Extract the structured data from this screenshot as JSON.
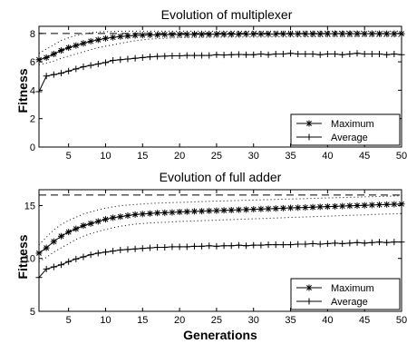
{
  "figure": {
    "xlabel_bottom": "Generations"
  },
  "chart_data": [
    {
      "type": "line",
      "title": "Evolution of multiplexer",
      "xlabel": "",
      "ylabel": "Fitness",
      "xlim": [
        1,
        50
      ],
      "ylim": [
        0,
        8.5
      ],
      "xticks": [
        5,
        10,
        15,
        20,
        25,
        30,
        35,
        40,
        45,
        50
      ],
      "yticks": [
        0,
        2,
        4,
        6,
        8
      ],
      "grid": false,
      "legend_position": "bottom-right",
      "reference_line": 8,
      "x": [
        1,
        2,
        3,
        4,
        5,
        6,
        7,
        8,
        9,
        10,
        11,
        12,
        13,
        14,
        15,
        16,
        17,
        18,
        19,
        20,
        21,
        22,
        23,
        24,
        25,
        26,
        27,
        28,
        29,
        30,
        31,
        32,
        33,
        34,
        35,
        36,
        37,
        38,
        39,
        40,
        41,
        42,
        43,
        44,
        45,
        46,
        47,
        48,
        49,
        50
      ],
      "series": [
        {
          "name": "Maximum",
          "marker": "asterisk",
          "values": [
            6.15,
            6.3,
            6.55,
            6.8,
            7.0,
            7.15,
            7.3,
            7.45,
            7.55,
            7.65,
            7.72,
            7.78,
            7.82,
            7.86,
            7.88,
            7.9,
            7.9,
            7.92,
            7.92,
            7.93,
            7.93,
            7.94,
            7.94,
            7.94,
            7.95,
            7.95,
            7.95,
            7.95,
            7.96,
            7.96,
            7.96,
            7.96,
            7.96,
            7.97,
            7.97,
            7.97,
            7.97,
            7.97,
            7.97,
            7.98,
            7.98,
            7.98,
            7.98,
            7.98,
            7.98,
            7.98,
            7.98,
            7.98,
            7.98,
            7.98
          ],
          "upper_band": [
            6.6,
            6.9,
            7.2,
            7.5,
            7.7,
            7.85,
            7.95,
            8.05,
            8.1,
            8.12,
            8.14,
            8.15,
            8.16,
            8.16,
            8.16,
            8.16,
            8.16,
            8.16,
            8.16,
            8.16,
            8.16,
            8.16,
            8.16,
            8.16,
            8.16,
            8.16,
            8.16,
            8.16,
            8.16,
            8.16,
            8.16,
            8.16,
            8.16,
            8.16,
            8.16,
            8.16,
            8.16,
            8.16,
            8.16,
            8.16,
            8.16,
            8.16,
            8.16,
            8.16,
            8.16,
            8.16,
            8.16,
            8.16,
            8.16,
            8.16
          ],
          "lower_band": [
            5.8,
            5.9,
            6.05,
            6.25,
            6.4,
            6.55,
            6.7,
            6.85,
            7.0,
            7.1,
            7.2,
            7.3,
            7.4,
            7.48,
            7.55,
            7.6,
            7.63,
            7.66,
            7.68,
            7.7,
            7.71,
            7.72,
            7.72,
            7.73,
            7.73,
            7.74,
            7.74,
            7.74,
            7.75,
            7.75,
            7.75,
            7.75,
            7.76,
            7.76,
            7.76,
            7.76,
            7.76,
            7.77,
            7.77,
            7.77,
            7.77,
            7.77,
            7.77,
            7.77,
            7.78,
            7.78,
            7.78,
            7.78,
            7.78,
            7.78
          ]
        },
        {
          "name": "Average",
          "marker": "plus",
          "values": [
            3.9,
            5.0,
            5.1,
            5.2,
            5.35,
            5.5,
            5.65,
            5.75,
            5.85,
            5.95,
            6.1,
            6.15,
            6.2,
            6.25,
            6.3,
            6.35,
            6.38,
            6.4,
            6.42,
            6.42,
            6.45,
            6.45,
            6.45,
            6.45,
            6.5,
            6.48,
            6.5,
            6.52,
            6.5,
            6.5,
            6.55,
            6.5,
            6.55,
            6.55,
            6.6,
            6.55,
            6.55,
            6.55,
            6.5,
            6.55,
            6.55,
            6.5,
            6.55,
            6.6,
            6.55,
            6.55,
            6.55,
            6.5,
            6.55,
            6.5
          ],
          "upper_band": [],
          "lower_band": []
        }
      ]
    },
    {
      "type": "line",
      "title": "Evolution of full adder",
      "xlabel": "Generations",
      "ylabel": "Fitness",
      "xlim": [
        1,
        50
      ],
      "ylim": [
        5,
        16.5
      ],
      "xticks": [
        5,
        10,
        15,
        20,
        25,
        30,
        35,
        40,
        45,
        50
      ],
      "yticks": [
        5,
        10,
        15
      ],
      "grid": false,
      "legend_position": "bottom-right",
      "reference_line": 16,
      "x": [
        1,
        2,
        3,
        4,
        5,
        6,
        7,
        8,
        9,
        10,
        11,
        12,
        13,
        14,
        15,
        16,
        17,
        18,
        19,
        20,
        21,
        22,
        23,
        24,
        25,
        26,
        27,
        28,
        29,
        30,
        31,
        32,
        33,
        34,
        35,
        36,
        37,
        38,
        39,
        40,
        41,
        42,
        43,
        44,
        45,
        46,
        47,
        48,
        49,
        50
      ],
      "series": [
        {
          "name": "Maximum",
          "marker": "asterisk",
          "values": [
            10.5,
            11.0,
            11.6,
            12.1,
            12.5,
            12.8,
            13.1,
            13.3,
            13.5,
            13.7,
            13.85,
            13.95,
            14.05,
            14.15,
            14.2,
            14.25,
            14.3,
            14.32,
            14.35,
            14.4,
            14.42,
            14.45,
            14.47,
            14.5,
            14.52,
            14.55,
            14.57,
            14.6,
            14.62,
            14.65,
            14.67,
            14.7,
            14.72,
            14.75,
            14.78,
            14.8,
            14.82,
            14.85,
            14.88,
            14.9,
            14.92,
            14.95,
            14.98,
            15.0,
            15.02,
            15.05,
            15.08,
            15.1,
            15.12,
            15.15
          ],
          "upper_band": [
            11.3,
            12.0,
            12.7,
            13.2,
            13.6,
            13.9,
            14.2,
            14.4,
            14.6,
            14.75,
            14.88,
            14.98,
            15.05,
            15.1,
            15.15,
            15.2,
            15.23,
            15.25,
            15.28,
            15.3,
            15.32,
            15.35,
            15.37,
            15.4,
            15.42,
            15.44,
            15.46,
            15.48,
            15.5,
            15.52,
            15.54,
            15.56,
            15.58,
            15.6,
            15.62,
            15.64,
            15.66,
            15.68,
            15.7,
            15.72,
            15.74,
            15.76,
            15.78,
            15.8,
            15.82,
            15.84,
            15.86,
            15.88,
            15.9,
            15.92
          ],
          "lower_band": [
            9.7,
            10.1,
            10.6,
            11.0,
            11.4,
            11.8,
            12.1,
            12.35,
            12.55,
            12.75,
            12.9,
            13.05,
            13.15,
            13.25,
            13.3,
            13.35,
            13.4,
            13.42,
            13.45,
            13.5,
            13.52,
            13.55,
            13.57,
            13.6,
            13.62,
            13.65,
            13.67,
            13.7,
            13.72,
            13.75,
            13.77,
            13.8,
            13.82,
            13.85,
            13.88,
            13.9,
            13.92,
            13.95,
            13.98,
            14.0,
            14.02,
            14.05,
            14.08,
            14.1,
            14.12,
            14.15,
            14.18,
            14.2,
            14.22,
            14.25
          ]
        },
        {
          "name": "Average",
          "marker": "plus",
          "values": [
            8.2,
            9.0,
            9.2,
            9.4,
            9.7,
            9.95,
            10.15,
            10.35,
            10.5,
            10.6,
            10.7,
            10.8,
            10.85,
            10.9,
            10.95,
            11.0,
            11.05,
            11.05,
            11.1,
            11.1,
            11.1,
            11.15,
            11.15,
            11.2,
            11.15,
            11.2,
            11.2,
            11.25,
            11.2,
            11.25,
            11.25,
            11.3,
            11.3,
            11.3,
            11.3,
            11.35,
            11.35,
            11.4,
            11.35,
            11.4,
            11.45,
            11.4,
            11.45,
            11.5,
            11.45,
            11.5,
            11.55,
            11.5,
            11.55,
            11.55
          ],
          "upper_band": [],
          "lower_band": []
        }
      ]
    }
  ]
}
